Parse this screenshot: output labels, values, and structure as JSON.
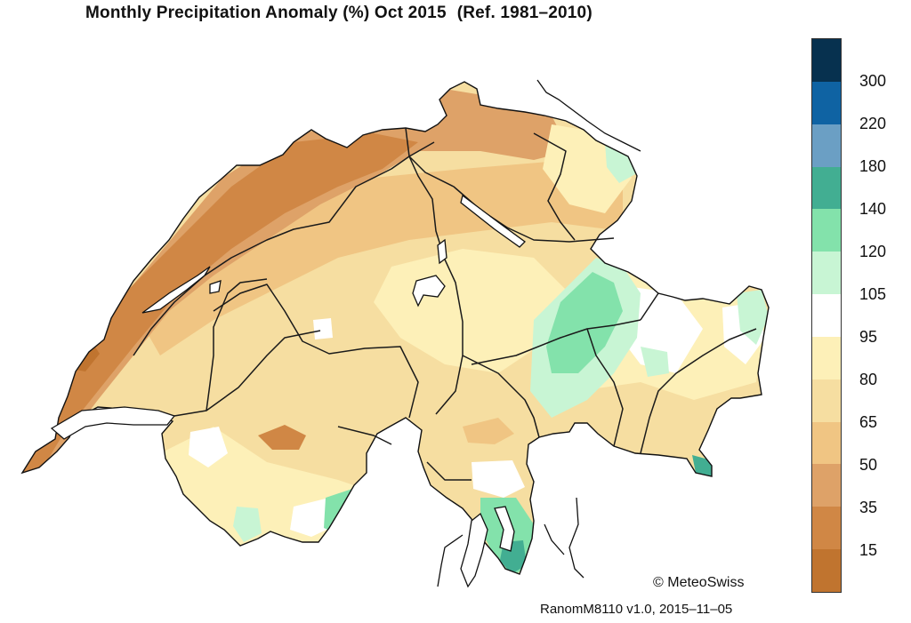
{
  "title": {
    "main": "Monthly Precipitation Anomaly (%) Oct 2015",
    "reference": "(Ref. 1981–2010)"
  },
  "legend": {
    "colors": [
      "#07314f",
      "#0f63a3",
      "#6b9fc4",
      "#42ae92",
      "#83e2ab",
      "#c8f5d4",
      "#ffffff",
      "#fdf0b8",
      "#f6dea1",
      "#f0c583",
      "#dea268",
      "#d08745",
      "#c0742f"
    ],
    "labels": [
      "300",
      "220",
      "180",
      "140",
      "120",
      "105",
      "95",
      "80",
      "65",
      "50",
      "35",
      "15"
    ]
  },
  "credits": {
    "copyright": "© MeteoSwiss",
    "version": "RanomM8110 v1.0, 2015–11–05"
  },
  "map_colors": {
    "very_dry": "#c0742f",
    "dry": "#d08745",
    "moderately_dry": "#dea268",
    "slightly_dry": "#f0c583",
    "mild": "#f6dea1",
    "near_normal": "#fdf0b8",
    "normal": "#ffffff",
    "wet": "#c8f5d4",
    "wetter": "#83e2ab",
    "very_wet": "#42ae92",
    "boundary": "#222222"
  }
}
